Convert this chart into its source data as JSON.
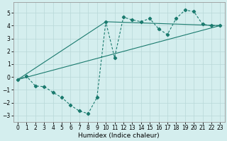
{
  "title": "",
  "xlabel": "Humidex (Indice chaleur)",
  "xlim": [
    -0.5,
    23.5
  ],
  "ylim": [
    -3.5,
    5.8
  ],
  "xticks": [
    0,
    1,
    2,
    3,
    4,
    5,
    6,
    7,
    8,
    9,
    10,
    11,
    12,
    13,
    14,
    15,
    16,
    17,
    18,
    19,
    20,
    21,
    22,
    23
  ],
  "yticks": [
    -3,
    -2,
    -1,
    0,
    1,
    2,
    3,
    4,
    5
  ],
  "bg_color": "#d4eeee",
  "line_color": "#1a7a6e",
  "grid_color": "#b8d8d8",
  "curve_x": [
    0,
    1,
    2,
    3,
    4,
    5,
    6,
    7,
    8,
    9,
    10,
    11,
    12,
    13,
    14,
    15,
    16,
    17,
    18,
    19,
    20,
    21,
    22,
    23
  ],
  "curve_y": [
    -0.2,
    0.05,
    -0.7,
    -0.75,
    -1.2,
    -1.6,
    -2.2,
    -2.65,
    -2.85,
    -1.6,
    4.3,
    1.5,
    4.65,
    4.45,
    4.3,
    4.55,
    3.75,
    3.3,
    4.55,
    5.2,
    5.1,
    4.1,
    4.0,
    4.0
  ],
  "line1_x": [
    0,
    23
  ],
  "line1_y": [
    -0.2,
    4.0
  ],
  "line2_x": [
    0,
    10,
    23
  ],
  "line2_y": [
    -0.2,
    4.3,
    4.0
  ]
}
